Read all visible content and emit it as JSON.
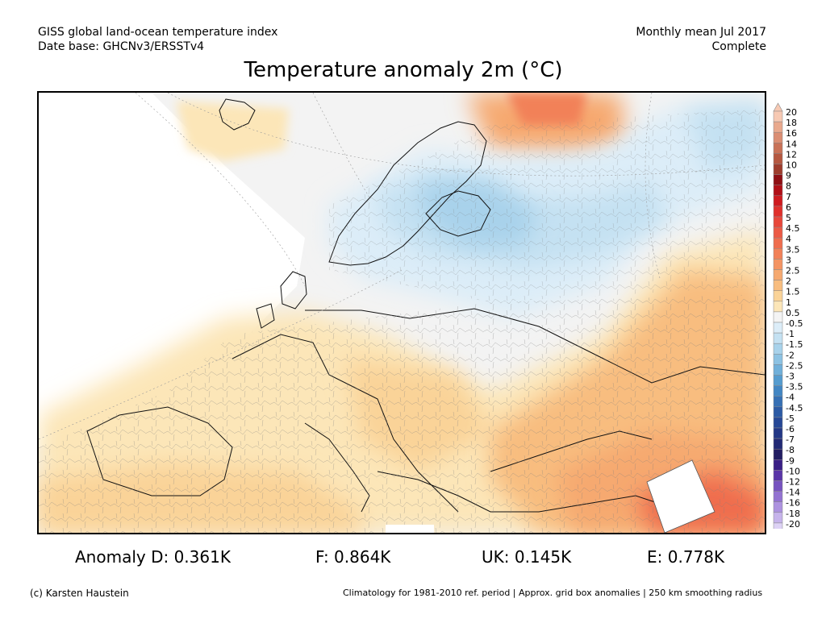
{
  "header": {
    "left_line1": "GISS global land-ocean temperature index",
    "left_line2": "Date base: GHCNv3/ERSSTv4",
    "right_line1": "Monthly mean Jul 2017",
    "right_line2": "Complete"
  },
  "title": "Temperature anomaly 2m (°C)",
  "legend": {
    "items": [
      {
        "label": "20",
        "color": "#f7c9b3"
      },
      {
        "label": "18",
        "color": "#e9a98d"
      },
      {
        "label": "16",
        "color": "#db8e73"
      },
      {
        "label": "14",
        "color": "#c97258"
      },
      {
        "label": "12",
        "color": "#b55841"
      },
      {
        "label": "10",
        "color": "#9e3d2d"
      },
      {
        "label": "9",
        "color": "#8f0f14"
      },
      {
        "label": "8",
        "color": "#b10f17"
      },
      {
        "label": "7",
        "color": "#cf1a1f"
      },
      {
        "label": "6",
        "color": "#e0302b"
      },
      {
        "label": "5",
        "color": "#e8473a"
      },
      {
        "label": "4.5",
        "color": "#ec5a45"
      },
      {
        "label": "4",
        "color": "#ef6d4e"
      },
      {
        "label": "3.5",
        "color": "#f28158"
      },
      {
        "label": "3",
        "color": "#f49463"
      },
      {
        "label": "2.5",
        "color": "#f6a970"
      },
      {
        "label": "2",
        "color": "#f8bd7f"
      },
      {
        "label": "1.5",
        "color": "#fad398"
      },
      {
        "label": "1",
        "color": "#fce6b8"
      },
      {
        "label": "0.5",
        "color": "#f4f4f4"
      },
      {
        "label": "-0.5",
        "color": "#dcedf8"
      },
      {
        "label": "-1",
        "color": "#c4e1f2"
      },
      {
        "label": "-1.5",
        "color": "#a8d2eb"
      },
      {
        "label": "-2",
        "color": "#8cc2e3"
      },
      {
        "label": "-2.5",
        "color": "#70b0da"
      },
      {
        "label": "-3",
        "color": "#559ccf"
      },
      {
        "label": "-3.5",
        "color": "#4286c3"
      },
      {
        "label": "-4",
        "color": "#3670b4"
      },
      {
        "label": "-4.5",
        "color": "#2c5ba5"
      },
      {
        "label": "-5",
        "color": "#264896"
      },
      {
        "label": "-6",
        "color": "#233886"
      },
      {
        "label": "-7",
        "color": "#222a75"
      },
      {
        "label": "-8",
        "color": "#221d63"
      },
      {
        "label": "-9",
        "color": "#3a1f86"
      },
      {
        "label": "-10",
        "color": "#5a35a8"
      },
      {
        "label": "-12",
        "color": "#7753c0"
      },
      {
        "label": "-14",
        "color": "#9372d1"
      },
      {
        "label": "-16",
        "color": "#ad92df"
      },
      {
        "label": "-18",
        "color": "#c6b3eb"
      },
      {
        "label": "-20",
        "color": "#ddd2f5"
      }
    ]
  },
  "stats": {
    "d": "Anomaly D: 0.361K",
    "f": "F: 0.864K",
    "uk": "UK: 0.145K",
    "e": "E: 0.778K"
  },
  "footer": {
    "copyright": "(c) Karsten Haustein",
    "note": "Climatology for 1981-2010 ref. period | Approx. grid box anomalies | 250 km smoothing radius"
  }
}
